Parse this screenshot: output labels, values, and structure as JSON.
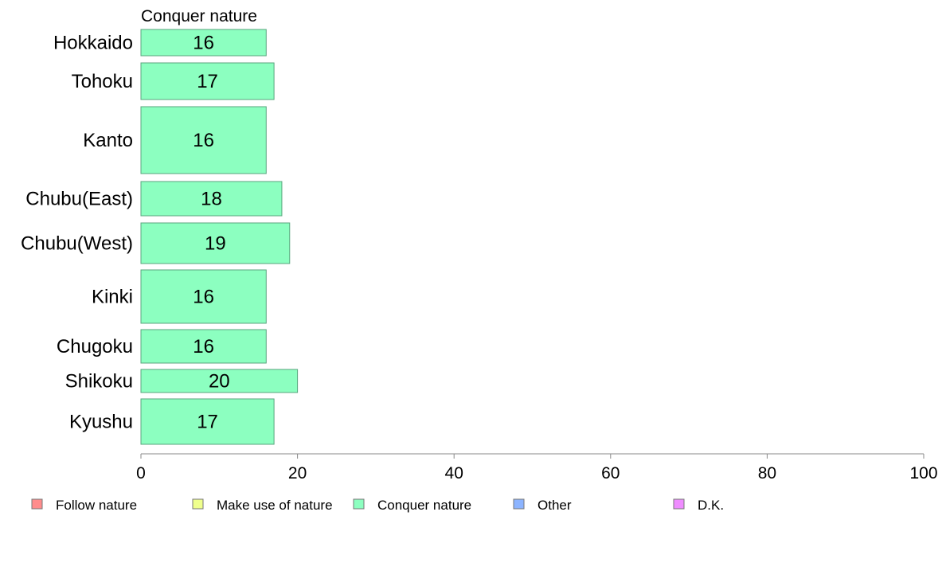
{
  "chart_data": {
    "type": "bar",
    "orientation": "horizontal",
    "title": "Conquer nature",
    "categories": [
      "Hokkaido",
      "Tohoku",
      "Kanto",
      "Chubu(East)",
      "Chubu(West)",
      "Kinki",
      "Chugoku",
      "Shikoku",
      "Kyushu"
    ],
    "series": [
      {
        "name": "Conquer nature",
        "values": [
          16,
          17,
          16,
          18,
          19,
          16,
          16,
          20,
          17
        ],
        "color": "#8cffc0"
      }
    ],
    "xlim": [
      0,
      100
    ],
    "xticks": [
      0,
      20,
      40,
      60,
      80,
      100
    ],
    "grid": false,
    "legend_position": "bottom",
    "legend": [
      {
        "label": "Follow nature",
        "color": "#ff8c8c"
      },
      {
        "label": "Make use of nature",
        "color": "#efff8c"
      },
      {
        "label": "Conquer nature",
        "color": "#8cffc0"
      },
      {
        "label": "Other",
        "color": "#8cb4ff"
      },
      {
        "label": "D.K.",
        "color": "#ef8cff"
      }
    ]
  }
}
